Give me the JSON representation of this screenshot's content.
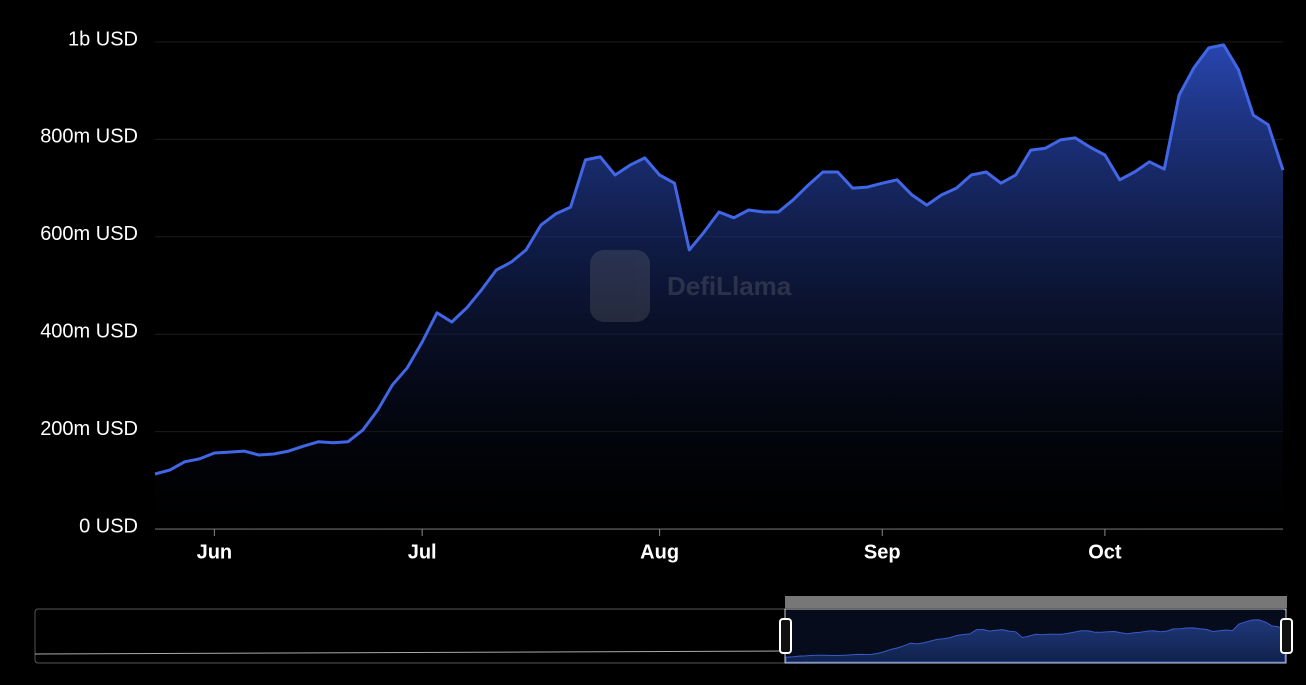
{
  "chart_data": {
    "type": "area",
    "watermark": "DefiLlama",
    "color": "#4166e6",
    "grid": true,
    "categories": [
      null,
      null,
      null,
      null,
      "Jun",
      null,
      null,
      null,
      null,
      null,
      null,
      null,
      null,
      null,
      null,
      null,
      null,
      null,
      "Jul",
      null,
      null,
      null,
      null,
      null,
      null,
      null,
      null,
      null,
      null,
      null,
      null,
      null,
      null,
      null,
      "Aug",
      null,
      null,
      null,
      null,
      null,
      null,
      null,
      null,
      null,
      null,
      null,
      null,
      null,
      null,
      "Sep",
      null,
      null,
      null,
      null,
      null,
      null,
      null,
      null,
      null,
      null,
      null,
      null,
      null,
      null,
      "Oct",
      null,
      null,
      null,
      null,
      null,
      null,
      null,
      null,
      null,
      null,
      null,
      null
    ],
    "values": [
      113000000,
      121000000,
      138000000,
      144000000,
      156000000,
      158000000,
      160000000,
      152000000,
      154000000,
      160000000,
      170000000,
      179000000,
      177000000,
      179000000,
      203000000,
      244000000,
      296000000,
      331000000,
      384000000,
      444000000,
      425000000,
      454000000,
      491000000,
      532000000,
      548000000,
      573000000,
      624000000,
      647000000,
      661000000,
      758000000,
      764000000,
      727000000,
      747000000,
      762000000,
      727000000,
      710000000,
      573000000,
      610000000,
      651000000,
      639000000,
      655000000,
      651000000,
      651000000,
      676000000,
      706000000,
      733000000,
      733000000,
      700000000,
      702000000,
      710000000,
      717000000,
      686000000,
      665000000,
      686000000,
      700000000,
      727000000,
      733000000,
      710000000,
      727000000,
      778000000,
      782000000,
      799000000,
      803000000,
      784000000,
      768000000,
      717000000,
      733000000,
      754000000,
      739000000,
      891000000,
      947000000,
      988000000,
      994000000,
      943000000,
      850000000,
      830000000,
      737000000
    ],
    "ylim": [
      0,
      1000000000
    ],
    "yticks": [
      {
        "value": 0,
        "label": "0 USD"
      },
      {
        "value": 200000000,
        "label": "200m USD"
      },
      {
        "value": 400000000,
        "label": "400m USD"
      },
      {
        "value": 600000000,
        "label": "600m USD"
      },
      {
        "value": 800000000,
        "label": "800m USD"
      },
      {
        "value": 1000000000,
        "label": "1b USD"
      }
    ]
  }
}
